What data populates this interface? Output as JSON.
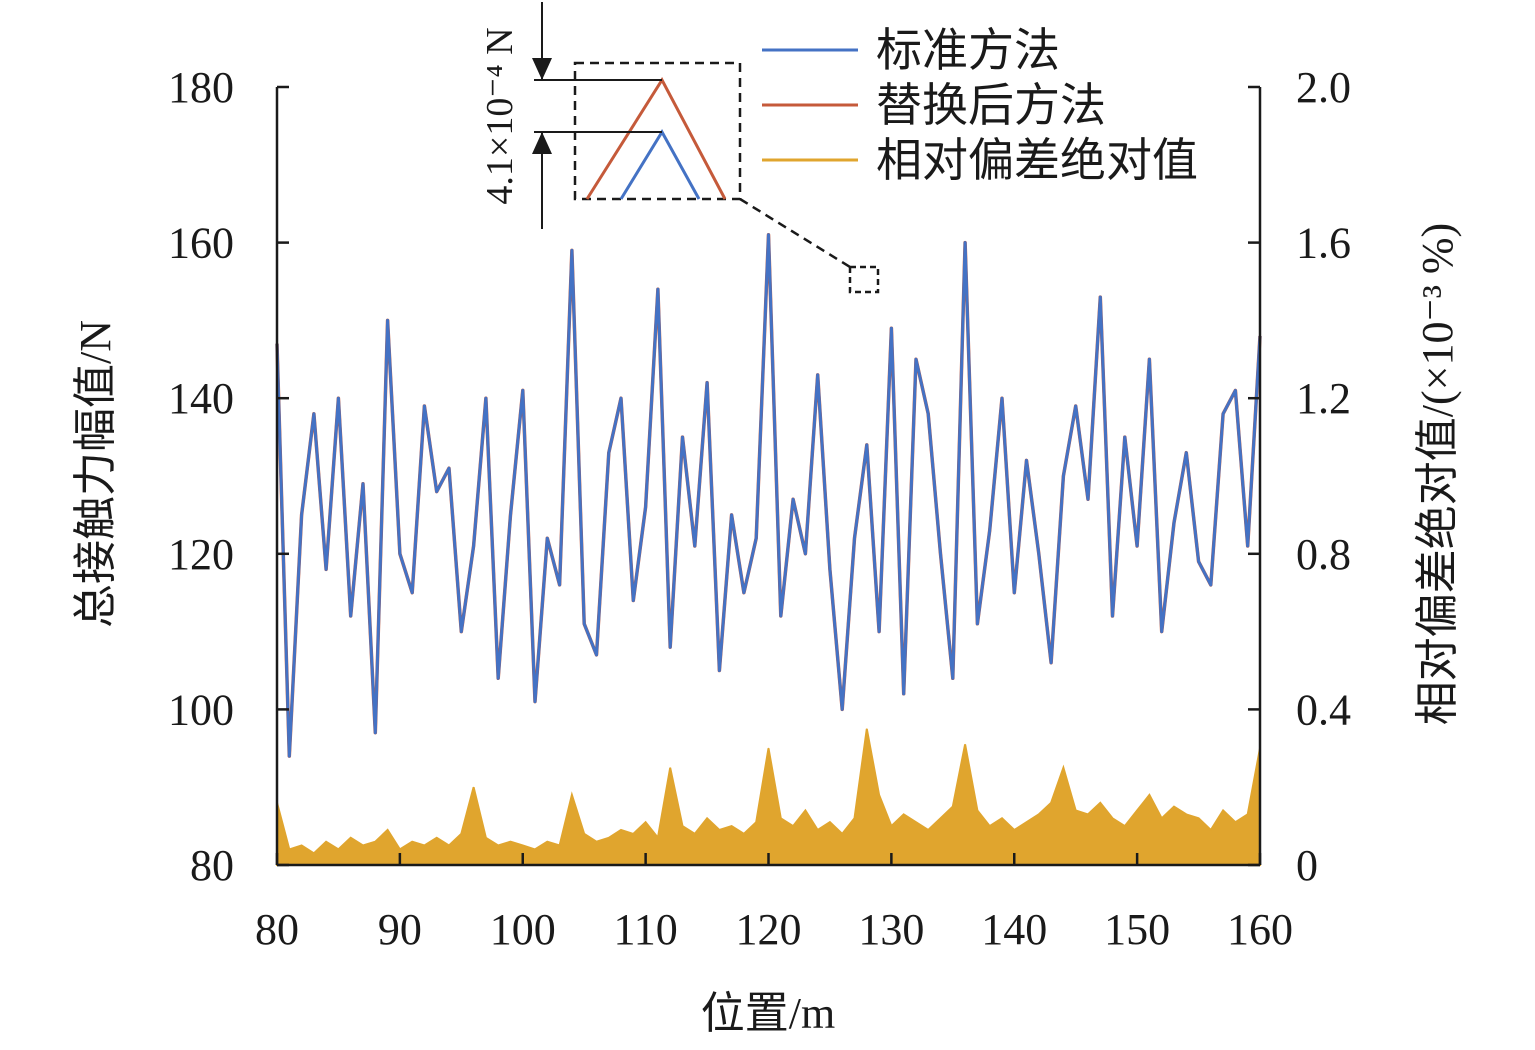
{
  "chart_data": {
    "type": "line",
    "xlabel": "位置/m",
    "ylabel_left": "总接触力幅值/N",
    "ylabel_right": "相对偏差绝对值/(×10⁻³ %)",
    "xlim": [
      80,
      160
    ],
    "ylim_left": [
      80,
      180
    ],
    "ylim_right": [
      0,
      2.0
    ],
    "x_ticks": [
      "80",
      "90",
      "100",
      "110",
      "120",
      "130",
      "140",
      "150",
      "160"
    ],
    "y_left_ticks": [
      "80",
      "100",
      "120",
      "140",
      "160",
      "180"
    ],
    "y_right_ticks": [
      "0",
      "0.4",
      "0.8",
      "1.2",
      "1.6",
      "2.0"
    ],
    "grid": false,
    "legend_position": "top-right",
    "series": [
      {
        "name": "标准方法",
        "axis": "left",
        "color": "#4472c4",
        "x": [
          80,
          81,
          82,
          83,
          84,
          85,
          86,
          87,
          88,
          89,
          90,
          91,
          92,
          93,
          94,
          95,
          96,
          97,
          98,
          99,
          100,
          101,
          102,
          103,
          104,
          105,
          106,
          107,
          108,
          109,
          110,
          111,
          112,
          113,
          114,
          115,
          116,
          117,
          118,
          119,
          120,
          121,
          122,
          123,
          124,
          125,
          126,
          127,
          128,
          129,
          130,
          131,
          132,
          133,
          134,
          135,
          136,
          137,
          138,
          139,
          140,
          141,
          142,
          143,
          144,
          145,
          146,
          147,
          148,
          149,
          150,
          151,
          152,
          153,
          154,
          155,
          156,
          157,
          158,
          159,
          160
        ],
        "values": [
          147,
          94,
          125,
          138,
          118,
          140,
          112,
          129,
          97,
          150,
          120,
          115,
          139,
          128,
          131,
          110,
          121,
          140,
          104,
          125,
          141,
          101,
          122,
          116,
          159,
          111,
          107,
          133,
          140,
          114,
          126,
          154,
          108,
          135,
          121,
          142,
          105,
          125,
          115,
          122,
          161,
          112,
          127,
          120,
          143,
          118,
          100,
          122,
          134,
          110,
          149,
          102,
          145,
          138,
          120,
          104,
          160,
          111,
          123,
          140,
          115,
          132,
          120,
          106,
          130,
          139,
          127,
          153,
          112,
          135,
          121,
          145,
          110,
          124,
          133,
          119,
          116,
          138,
          141,
          121,
          148
        ]
      },
      {
        "name": "替换后方法",
        "axis": "left",
        "color": "#c55a3a",
        "x": [
          80,
          81,
          82,
          83,
          84,
          85,
          86,
          87,
          88,
          89,
          90,
          91,
          92,
          93,
          94,
          95,
          96,
          97,
          98,
          99,
          100,
          101,
          102,
          103,
          104,
          105,
          106,
          107,
          108,
          109,
          110,
          111,
          112,
          113,
          114,
          115,
          116,
          117,
          118,
          119,
          120,
          121,
          122,
          123,
          124,
          125,
          126,
          127,
          128,
          129,
          130,
          131,
          132,
          133,
          134,
          135,
          136,
          137,
          138,
          139,
          140,
          141,
          142,
          143,
          144,
          145,
          146,
          147,
          148,
          149,
          150,
          151,
          152,
          153,
          154,
          155,
          156,
          157,
          158,
          159,
          160
        ],
        "values": [
          147,
          94,
          125,
          138,
          118,
          140,
          112,
          129,
          97,
          150,
          120,
          115,
          139,
          128,
          131,
          110,
          121,
          140,
          104,
          125,
          141,
          101,
          122,
          116,
          159,
          111,
          107,
          133,
          140,
          114,
          126,
          154,
          108,
          135,
          121,
          142,
          105,
          125,
          115,
          122,
          161,
          112,
          127,
          120,
          143,
          118,
          100,
          122,
          134,
          110,
          149,
          102,
          145,
          138,
          120,
          104,
          160,
          111,
          123,
          140,
          115,
          132,
          120,
          106,
          130,
          139,
          127,
          153,
          112,
          135,
          121,
          145,
          110,
          124,
          133,
          119,
          116,
          138,
          141,
          121,
          148
        ]
      },
      {
        "name": "相对偏差绝对值",
        "axis": "right",
        "color": "#e0a52e",
        "x": [
          80,
          81,
          82,
          83,
          84,
          85,
          86,
          87,
          88,
          89,
          90,
          91,
          92,
          93,
          94,
          95,
          96,
          97,
          98,
          99,
          100,
          101,
          102,
          103,
          104,
          105,
          106,
          107,
          108,
          109,
          110,
          111,
          112,
          113,
          114,
          115,
          116,
          117,
          118,
          119,
          120,
          121,
          122,
          123,
          124,
          125,
          126,
          127,
          128,
          129,
          130,
          131,
          132,
          133,
          134,
          135,
          136,
          137,
          138,
          139,
          140,
          141,
          142,
          143,
          144,
          145,
          146,
          147,
          148,
          149,
          150,
          151,
          152,
          153,
          154,
          155,
          156,
          157,
          158,
          159,
          160
        ],
        "values": [
          0.16,
          0.04,
          0.05,
          0.03,
          0.06,
          0.04,
          0.07,
          0.05,
          0.06,
          0.09,
          0.04,
          0.06,
          0.05,
          0.07,
          0.05,
          0.08,
          0.2,
          0.07,
          0.05,
          0.06,
          0.05,
          0.04,
          0.06,
          0.05,
          0.18,
          0.08,
          0.06,
          0.07,
          0.09,
          0.08,
          0.11,
          0.07,
          0.25,
          0.1,
          0.08,
          0.12,
          0.09,
          0.1,
          0.08,
          0.11,
          0.3,
          0.12,
          0.1,
          0.14,
          0.09,
          0.11,
          0.08,
          0.12,
          0.35,
          0.18,
          0.1,
          0.13,
          0.11,
          0.09,
          0.12,
          0.15,
          0.31,
          0.14,
          0.1,
          0.12,
          0.09,
          0.11,
          0.13,
          0.16,
          0.25,
          0.14,
          0.13,
          0.16,
          0.12,
          0.1,
          0.14,
          0.18,
          0.12,
          0.15,
          0.13,
          0.12,
          0.09,
          0.14,
          0.11,
          0.13,
          0.3
        ]
      }
    ],
    "inset": {
      "annotation": "4.1×10⁻⁴ N"
    }
  }
}
